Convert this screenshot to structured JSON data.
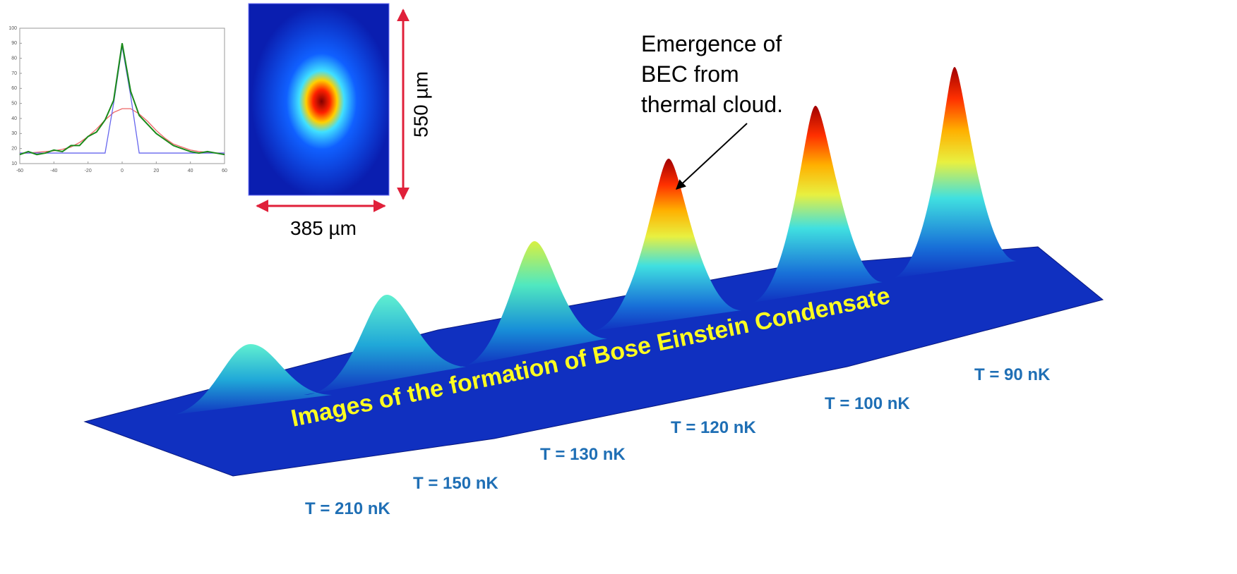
{
  "inset_plot": {
    "type": "line",
    "x": [
      -60,
      -55,
      -50,
      -45,
      -40,
      -35,
      -30,
      -25,
      -20,
      -15,
      -10,
      -5,
      0,
      5,
      10,
      15,
      20,
      25,
      30,
      35,
      40,
      45,
      50,
      55,
      60
    ],
    "series": [
      {
        "color": "#ee6666",
        "values": [
          17,
          17,
          17.5,
          18,
          18.5,
          19.5,
          21,
          24,
          28,
          33,
          39,
          44,
          46.5,
          46.5,
          43,
          38,
          32,
          27,
          23,
          21,
          19,
          18,
          17.5,
          17,
          17
        ]
      },
      {
        "color": "#6666ee",
        "values": [
          17,
          17,
          17,
          17,
          17,
          17,
          17,
          17,
          17,
          17,
          17,
          50,
          88,
          55,
          17,
          17,
          17,
          17,
          17,
          17,
          17,
          17,
          17,
          17,
          17
        ]
      },
      {
        "color": "#1a8a1a",
        "values": [
          16,
          18,
          16,
          17,
          19,
          18,
          22,
          22,
          28,
          31,
          39,
          52,
          90,
          58,
          42,
          36,
          30,
          26,
          22,
          20,
          18,
          17,
          18,
          17,
          16
        ]
      }
    ],
    "xlim": [
      -60,
      60
    ],
    "ylim": [
      10,
      100
    ],
    "xticks": [
      -60,
      -40,
      -20,
      0,
      20,
      40,
      60
    ],
    "yticks": [
      10,
      20,
      30,
      40,
      50,
      60,
      70,
      80,
      90,
      100
    ]
  },
  "absorption_image": {
    "height_label": "550 µm",
    "width_label": "385 µm"
  },
  "annotation": {
    "lines": [
      "Emergence of",
      "BEC from",
      "thermal cloud."
    ]
  },
  "title": "Images of the formation of Bose Einstein Condensate",
  "temperatures": [
    "T = 210 nK",
    "T = 150 nK",
    "T = 130 nK",
    "T = 120 nK",
    "T = 100 nK",
    "T = 90 nK"
  ]
}
